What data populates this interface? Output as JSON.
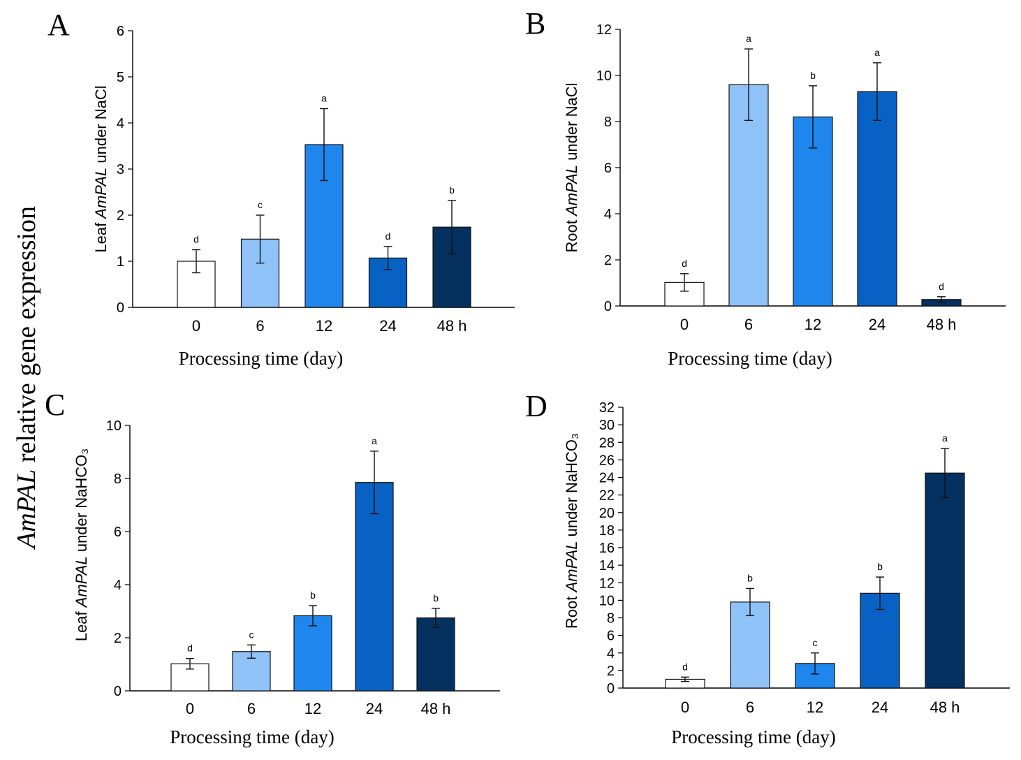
{
  "global_ylabel_italic": "AmPAL",
  "global_ylabel_rest": " relative gene expression",
  "bar_colors": [
    "#ffffff",
    "#8fc3f7",
    "#1f86ee",
    "#0862c4",
    "#04315f"
  ],
  "chart_data": [
    {
      "type": "bar",
      "panel": "A",
      "title": "",
      "categories": [
        "0",
        "6",
        "12",
        "24",
        "48 h"
      ],
      "values": [
        1.0,
        1.48,
        3.53,
        1.07,
        1.74
      ],
      "errors": [
        0.25,
        0.52,
        0.78,
        0.25,
        0.58
      ],
      "sig_letters": [
        "d",
        "c",
        "a",
        "d",
        "b"
      ],
      "ylabel_prefix": "Leaf ",
      "ylabel_gene": "AmPAL",
      "ylabel_suffix": " under NaCl",
      "xlabel": "Processing time (day)",
      "ylim": [
        0,
        6
      ],
      "yticks": [
        0,
        1,
        2,
        3,
        4,
        5,
        6
      ],
      "grid": false
    },
    {
      "type": "bar",
      "panel": "B",
      "title": "",
      "categories": [
        "0",
        "6",
        "12",
        "24",
        "48 h"
      ],
      "values": [
        1.02,
        9.6,
        8.2,
        9.3,
        0.28
      ],
      "errors": [
        0.38,
        1.55,
        1.35,
        1.25,
        0.12
      ],
      "sig_letters": [
        "d",
        "a",
        "b",
        "a",
        "d"
      ],
      "ylabel_prefix": "Root ",
      "ylabel_gene": "AmPAL",
      "ylabel_suffix": " under NaCl",
      "xlabel": "Processing time (day)",
      "ylim": [
        0,
        12
      ],
      "yticks": [
        0,
        2,
        4,
        6,
        8,
        10,
        12
      ],
      "grid": false
    },
    {
      "type": "bar",
      "panel": "C",
      "title": "",
      "categories": [
        "0",
        "6",
        "12",
        "24",
        "48 h"
      ],
      "values": [
        1.02,
        1.48,
        2.83,
        7.85,
        2.75
      ],
      "errors": [
        0.2,
        0.25,
        0.38,
        1.18,
        0.36
      ],
      "sig_letters": [
        "d",
        "c",
        "b",
        "a",
        "b"
      ],
      "ylabel_prefix": "Leaf ",
      "ylabel_gene": "AmPAL",
      "ylabel_suffix": " under NaHCO₃",
      "xlabel": "Processing time (day)",
      "ylim": [
        0,
        10
      ],
      "yticks": [
        0,
        2,
        4,
        6,
        8,
        10
      ],
      "grid": false
    },
    {
      "type": "bar",
      "panel": "D",
      "title": "",
      "categories": [
        "0",
        "6",
        "12",
        "24",
        "48 h"
      ],
      "values": [
        1.0,
        9.8,
        2.8,
        10.8,
        24.5
      ],
      "errors": [
        0.25,
        1.55,
        1.2,
        1.85,
        2.8
      ],
      "sig_letters": [
        "d",
        "b",
        "c",
        "b",
        "a"
      ],
      "ylabel_prefix": "Root ",
      "ylabel_gene": "AmPAL",
      "ylabel_suffix": " under NaHCO₃",
      "xlabel": "Processing time (day)",
      "ylim": [
        0,
        32
      ],
      "yticks": [
        0,
        2,
        4,
        6,
        8,
        10,
        12,
        14,
        16,
        18,
        20,
        22,
        24,
        26,
        28,
        30,
        32
      ],
      "grid": false
    }
  ]
}
